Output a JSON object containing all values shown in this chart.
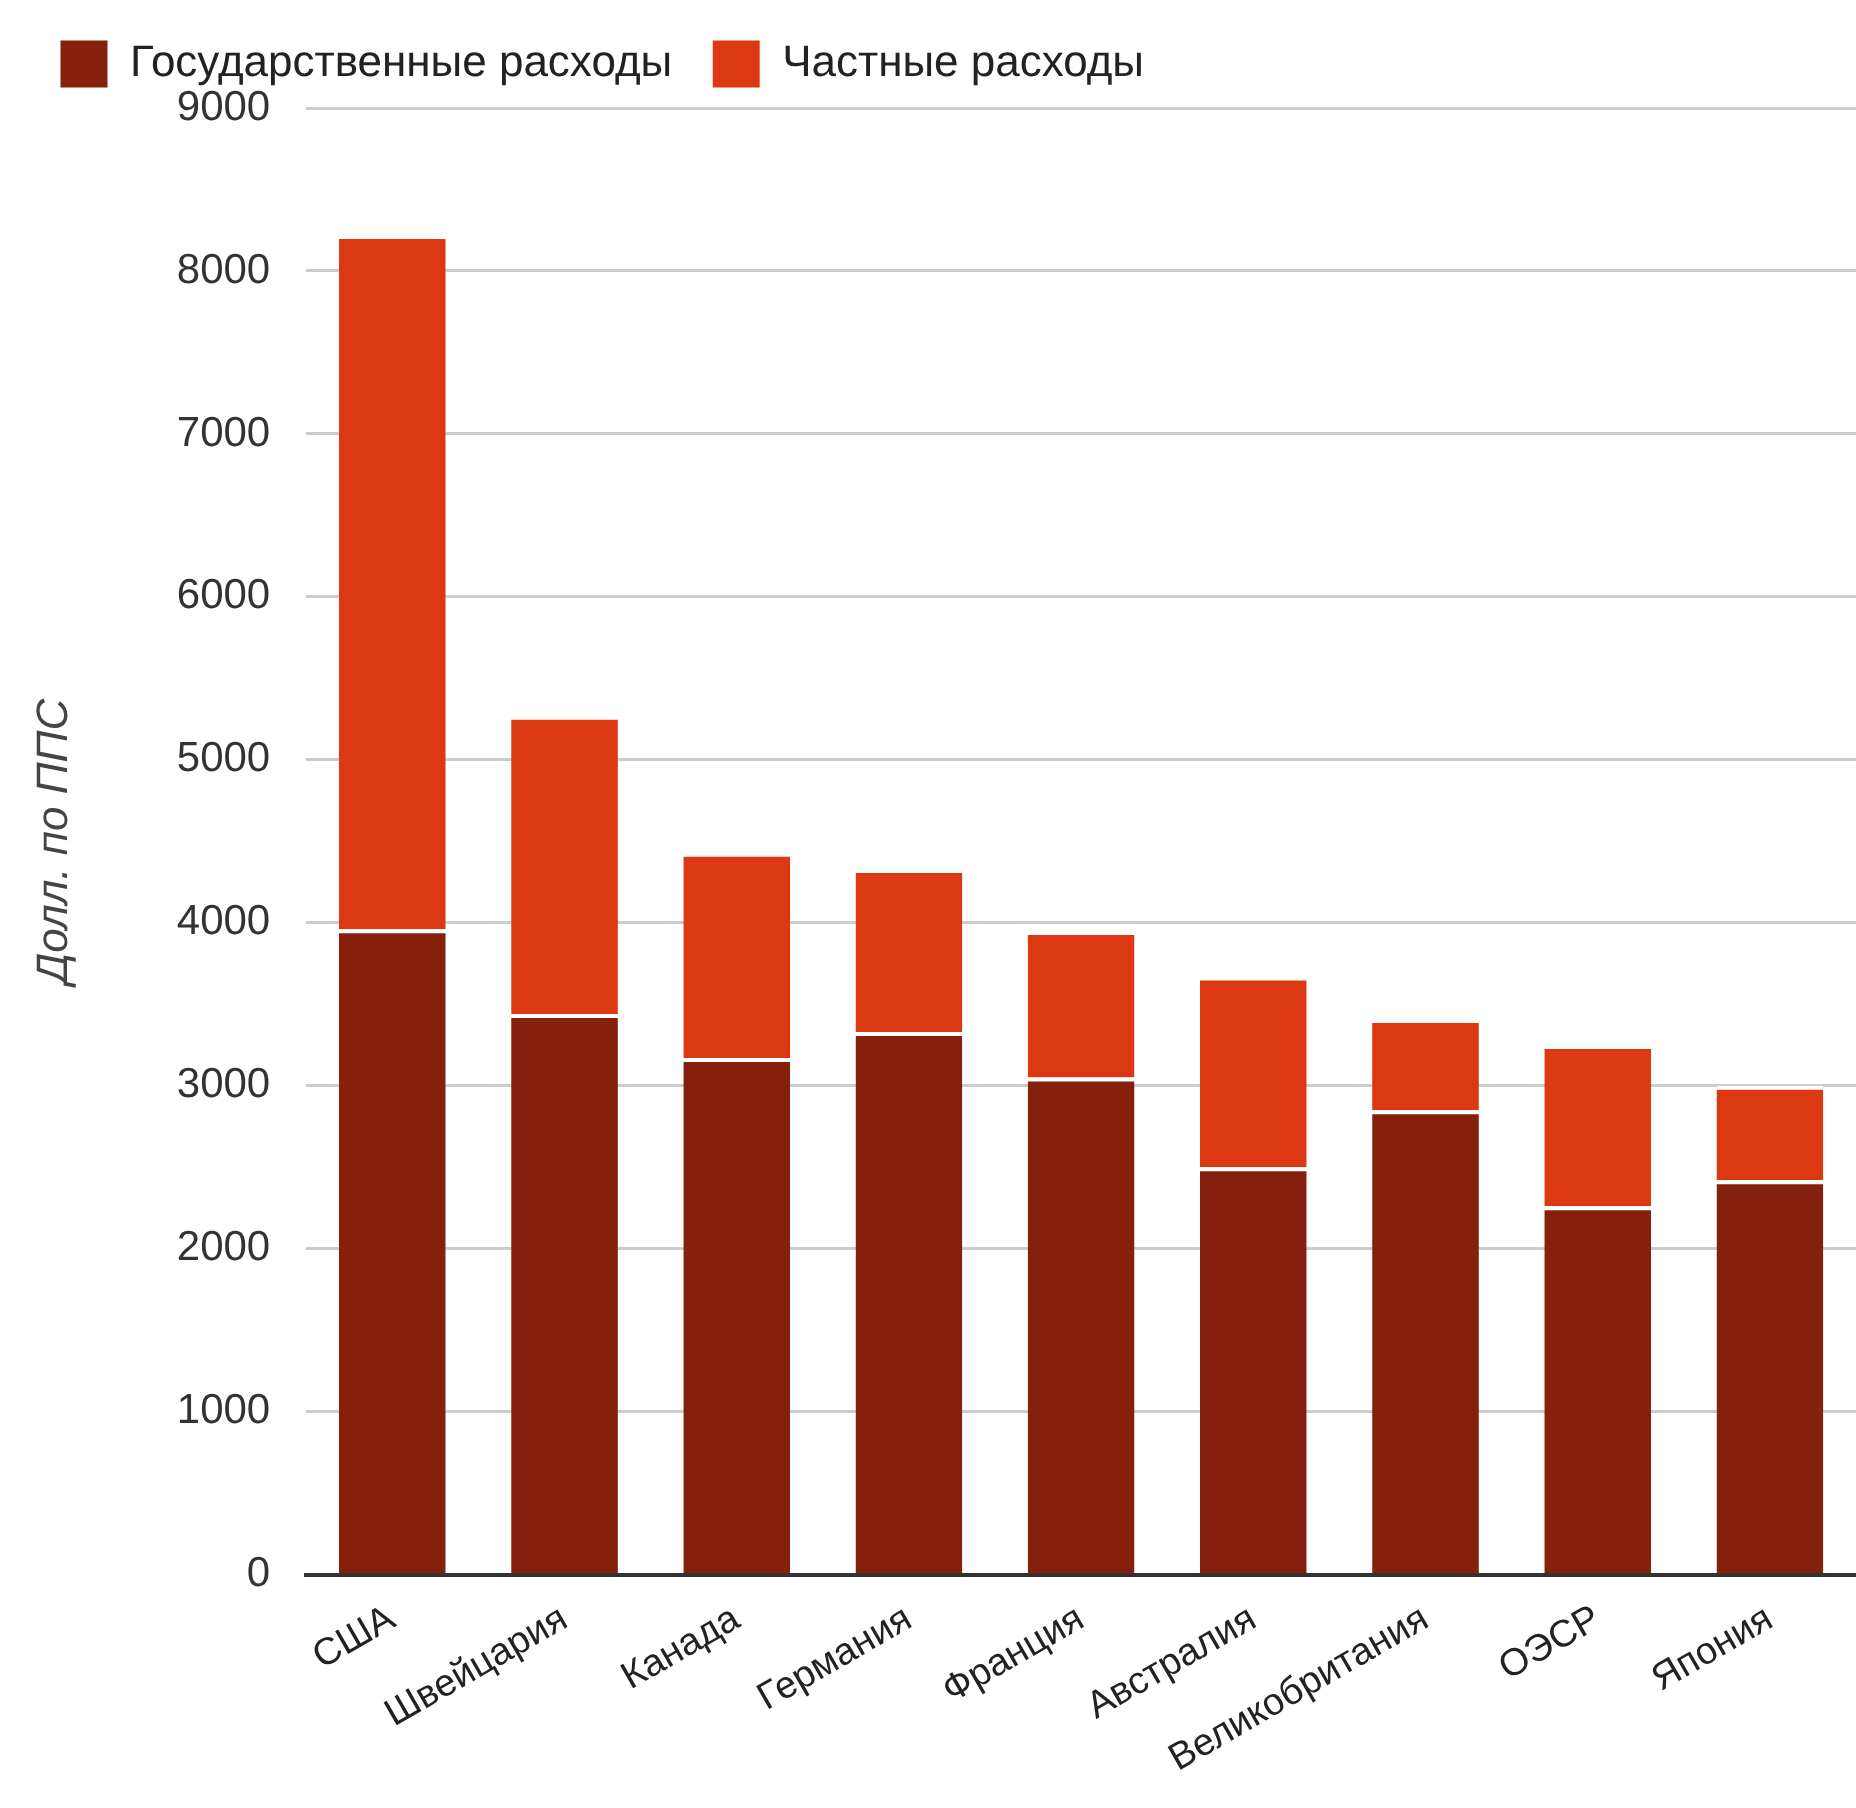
{
  "chart_data": {
    "type": "bar",
    "ylabel": "Долл. по ППС",
    "stacked": true,
    "legend": "top left",
    "grid": "y",
    "categories": [
      "США",
      "Швейцария",
      "Канада",
      "Германия",
      "Франция",
      "Австралия",
      "Великобритания",
      "ОЭСР",
      "Япония"
    ],
    "series": [
      {
        "name": "Государственные расходы",
        "color": "#85200c",
        "values": [
          3960,
          3440,
          3170,
          3330,
          3050,
          2500,
          2850,
          2260,
          2420
        ]
      },
      {
        "name": "Частные расходы",
        "color": "#dc3912",
        "values": [
          4260,
          1830,
          1260,
          1000,
          900,
          1170,
          560,
          990,
          580
        ]
      }
    ],
    "ylim": [
      0,
      9000
    ],
    "yticks": [
      0,
      1000,
      2000,
      3000,
      4000,
      5000,
      6000,
      7000,
      8000,
      9000
    ]
  }
}
